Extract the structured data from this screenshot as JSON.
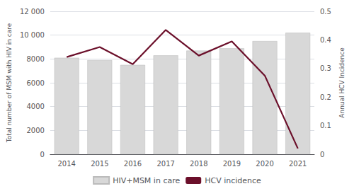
{
  "chart_data": {
    "type": "bar",
    "categories": [
      "2014",
      "2015",
      "2016",
      "2017",
      "2018",
      "2019",
      "2020",
      "2021"
    ],
    "series": [
      {
        "name": "HIV+MSM in care",
        "type": "bar",
        "color": "#d8d8d8",
        "values": [
          8100,
          7900,
          7500,
          8300,
          8700,
          8900,
          9500,
          10200
        ]
      },
      {
        "name": "HCV incidence",
        "type": "line",
        "color": "#6b0f2a",
        "axis": "y2",
        "values": [
          0.34,
          0.375,
          0.315,
          0.435,
          0.345,
          0.395,
          0.275,
          0.02
        ]
      }
    ],
    "ylabel": "Total number of MSM with HIV in care",
    "y2label": "Annual HCV Incidence",
    "ylim": [
      0,
      12000
    ],
    "yticks": [
      0,
      2000,
      4000,
      6000,
      8000,
      {
        "value": 10000,
        "label": "10 000"
      },
      {
        "value": 12000,
        "label": "12 000"
      }
    ],
    "y2lim": [
      0,
      0.5
    ],
    "y2ticks": [
      0,
      0.1,
      0.2,
      0.3,
      0.4,
      0.5
    ],
    "grid": true,
    "legend": "bottom"
  }
}
